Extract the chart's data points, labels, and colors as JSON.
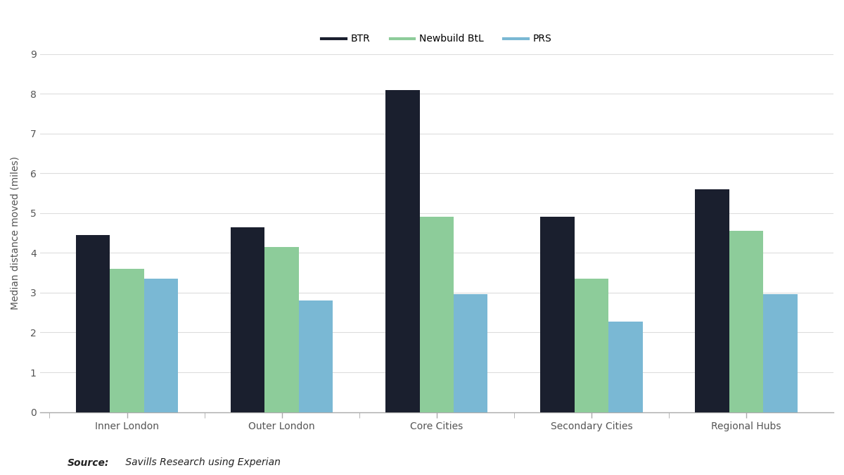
{
  "categories": [
    "Inner London",
    "Outer London",
    "Core Cities",
    "Secondary Cities",
    "Regional Hubs"
  ],
  "series": {
    "BTR": [
      4.45,
      4.65,
      8.1,
      4.9,
      5.6
    ],
    "Newbuild BtL": [
      3.6,
      4.15,
      4.9,
      3.35,
      4.55
    ],
    "PRS": [
      3.35,
      2.8,
      2.97,
      2.28,
      2.97
    ]
  },
  "colors": {
    "BTR": "#1a1f2e",
    "Newbuild BtL": "#8dcc9a",
    "PRS": "#7ab8d4"
  },
  "legend_labels": [
    "BTR",
    "Newbuild BtL",
    "PRS"
  ],
  "ylabel": "Median distance moved (miles)",
  "ylim": [
    0,
    9
  ],
  "yticks": [
    0,
    1,
    2,
    3,
    4,
    5,
    6,
    7,
    8,
    9
  ],
  "source_bold": "Source:",
  "source_italic": " Savills Research using Experian",
  "background_color": "#ffffff",
  "bar_width": 0.22,
  "tick_fontsize": 10,
  "ylabel_fontsize": 10,
  "legend_fontsize": 10,
  "source_fontsize": 10,
  "grid_color": "#dddddd",
  "tick_label_color": "#555555",
  "spine_color": "#aaaaaa"
}
